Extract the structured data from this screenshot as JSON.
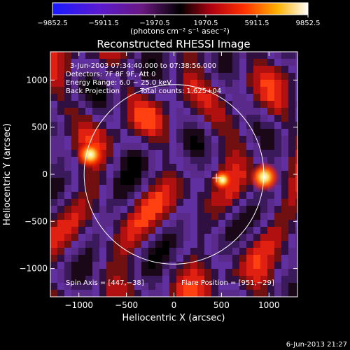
{
  "chart_data": {
    "type": "heatmap",
    "title": "Reconstructed RHESSI Image",
    "xlabel": "Heliocentric X (arcsec)",
    "ylabel": "Heliocentric Y (arcsec)",
    "xlim": [
      -1300,
      1300
    ],
    "ylim": [
      -1300,
      1300
    ],
    "x_ticks": [
      -1000,
      -500,
      0,
      500,
      1000
    ],
    "x_tick_labels": [
      "−1000",
      "−500",
      "0",
      "500",
      "1000"
    ],
    "y_ticks": [
      -1000,
      -500,
      0,
      500,
      1000
    ],
    "y_tick_labels": [
      "−1000",
      "−500",
      "0",
      "500",
      "1000"
    ],
    "colorbar": {
      "min": -9852.5,
      "max": 9852.5,
      "tick_values": [
        -9852.5,
        -5911.5,
        -1970.5,
        1970.5,
        5911.5,
        9852.5
      ],
      "tick_labels": [
        "−9852.5",
        "−5911.5",
        "−1970.5",
        "1970.5",
        "5911.5",
        "9852.5"
      ],
      "unit_label": "(photons cm⁻² s⁻¹ asec⁻²)"
    },
    "annotations": {
      "time_range": "3-Jun-2003 07:34:40.000 to 07:38:56.000",
      "detectors": "Detectors: 7F 8F 9F, Att 0",
      "energy_range": "Energy Range: 6.0 − 25.0 keV",
      "method": "Back Projection",
      "total_counts": "Total counts: 1.625+04",
      "spin_axis": "Spin Axis = [447,−38]",
      "flare_position": "Flare Position = [951,−29]"
    },
    "solar_limb_radius": 945,
    "solar_limb_center": [
      0,
      0
    ],
    "marker": {
      "type": "cross",
      "x": 447,
      "y": -38
    },
    "sources": [
      {
        "x": 951,
        "y": -29,
        "intensity": 1.0
      },
      {
        "x": -880,
        "y": 210,
        "intensity": 0.95
      },
      {
        "x": 510,
        "y": -60,
        "intensity": 0.7
      }
    ]
  },
  "footer": {
    "timestamp": "6-Jun-2013 21:27"
  }
}
